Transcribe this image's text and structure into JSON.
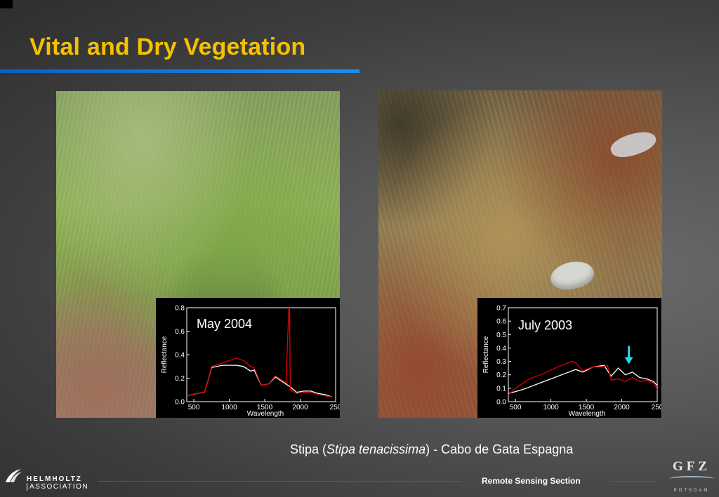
{
  "slide": {
    "title": "Vital and Dry Vegetation",
    "caption_prefix": "Stipa (",
    "caption_italic": "Stipa tenacissima",
    "caption_suffix": ") - Cabo de Gata Espagna",
    "footer_text": "Remote Sensing Section",
    "logo_left": {
      "name": "HELMHOLTZ",
      "sub": "ASSOCIATION"
    },
    "logo_right": {
      "name": "GFZ",
      "sub": "POTSDAM"
    },
    "colors": {
      "title": "#f5c000",
      "rule": "#1a8ff0",
      "vital_line": "#ffffff",
      "dry_line": "#e00000",
      "arrow": "#22d8ee"
    }
  },
  "chart_data": [
    {
      "type": "line",
      "title": "May 2004",
      "xlabel": "Wavelength",
      "ylabel": "Reflectance",
      "xlim": [
        400,
        2500
      ],
      "ylim": [
        0.0,
        0.8
      ],
      "xticks": [
        "500",
        "1000",
        "1500",
        "2000",
        "250"
      ],
      "yticks": [
        "0.0",
        "0.2",
        "0.4",
        "0.6",
        "0.8"
      ],
      "series": [
        {
          "color": "#ffffff",
          "x": [
            400,
            550,
            650,
            700,
            750,
            900,
            1100,
            1200,
            1300,
            1350,
            1450,
            1550,
            1650,
            1750,
            1800,
            1850,
            1950,
            2050,
            2150,
            2250,
            2350,
            2450
          ],
          "y": [
            0.05,
            0.07,
            0.08,
            0.18,
            0.29,
            0.31,
            0.31,
            0.3,
            0.26,
            0.27,
            0.14,
            0.15,
            0.21,
            0.17,
            0.15,
            0.13,
            0.08,
            0.09,
            0.09,
            0.07,
            0.06,
            0.04
          ]
        },
        {
          "color": "#e00000",
          "x": [
            400,
            550,
            650,
            700,
            750,
            900,
            1100,
            1200,
            1300,
            1350,
            1450,
            1550,
            1650,
            1750,
            1800,
            1840,
            1850,
            1860,
            1950,
            2050,
            2150,
            2250,
            2350,
            2450
          ],
          "y": [
            0.05,
            0.07,
            0.08,
            0.18,
            0.3,
            0.33,
            0.37,
            0.35,
            0.3,
            0.29,
            0.14,
            0.15,
            0.22,
            0.18,
            0.16,
            0.8,
            0.79,
            0.1,
            0.07,
            0.08,
            0.08,
            0.06,
            0.05,
            0.04
          ]
        }
      ]
    },
    {
      "type": "line",
      "title": "July 2003",
      "xlabel": "Wavelength",
      "ylabel": "Reflectance",
      "xlim": [
        400,
        2500
      ],
      "ylim": [
        0.0,
        0.7
      ],
      "xticks": [
        "500",
        "1000",
        "1500",
        "2000",
        "250"
      ],
      "yticks": [
        "0.0",
        "0.1",
        "0.2",
        "0.3",
        "0.4",
        "0.5",
        "0.6",
        "0.7"
      ],
      "series": [
        {
          "color": "#ffffff",
          "x": [
            400,
            600,
            800,
            1000,
            1200,
            1350,
            1450,
            1600,
            1750,
            1850,
            1950,
            2050,
            2150,
            2250,
            2350,
            2450,
            2500
          ],
          "y": [
            0.06,
            0.09,
            0.13,
            0.17,
            0.21,
            0.24,
            0.22,
            0.26,
            0.27,
            0.19,
            0.25,
            0.2,
            0.22,
            0.18,
            0.17,
            0.15,
            0.12
          ]
        },
        {
          "color": "#e00000",
          "x": [
            400,
            500,
            700,
            900,
            1100,
            1300,
            1350,
            1450,
            1600,
            1750,
            1800,
            1850,
            1950,
            2050,
            2150,
            2250,
            2350,
            2450,
            2500
          ],
          "y": [
            0.05,
            0.1,
            0.17,
            0.21,
            0.26,
            0.3,
            0.29,
            0.23,
            0.26,
            0.26,
            0.27,
            0.16,
            0.17,
            0.15,
            0.18,
            0.15,
            0.16,
            0.14,
            0.09
          ]
        }
      ],
      "annotations": [
        {
          "type": "arrow",
          "x": 2100,
          "y": 0.29
        }
      ]
    }
  ]
}
